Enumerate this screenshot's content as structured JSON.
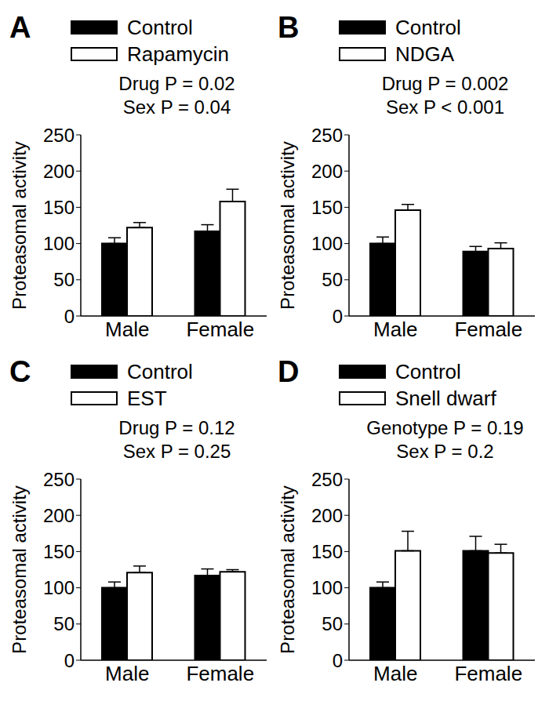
{
  "chart_data": [
    {
      "type": "bar",
      "panel_label": "A",
      "annotations": [
        "Drug P = 0.02",
        "Sex P = 0.04"
      ],
      "y_label": "Proteasomal activity",
      "categories": [
        "Male",
        "Female"
      ],
      "series": [
        {
          "name": "Control",
          "color": "#000000",
          "values": [
            100,
            117
          ],
          "errors": [
            8,
            9
          ]
        },
        {
          "name": "Rapamycin",
          "color": "#ffffff",
          "values": [
            122,
            158
          ],
          "errors": [
            7,
            17
          ]
        }
      ],
      "ylim": [
        0,
        250
      ],
      "yticks": [
        0,
        50,
        100,
        150,
        200,
        250
      ],
      "legend": "top",
      "grid": false
    },
    {
      "type": "bar",
      "panel_label": "B",
      "annotations": [
        "Drug P = 0.002",
        "Sex P < 0.001"
      ],
      "y_label": "Proteasomal activity",
      "categories": [
        "Male",
        "Female"
      ],
      "series": [
        {
          "name": "Control",
          "color": "#000000",
          "values": [
            100,
            89
          ],
          "errors": [
            9,
            7
          ]
        },
        {
          "name": "NDGA",
          "color": "#ffffff",
          "values": [
            146,
            93
          ],
          "errors": [
            8,
            8
          ]
        }
      ],
      "ylim": [
        0,
        250
      ],
      "yticks": [
        0,
        50,
        100,
        150,
        200,
        250
      ],
      "legend": "top",
      "grid": false
    },
    {
      "type": "bar",
      "panel_label": "C",
      "annotations": [
        "Drug P = 0.12",
        "Sex P = 0.25"
      ],
      "y_label": "Proteasomal activity",
      "categories": [
        "Male",
        "Female"
      ],
      "series": [
        {
          "name": "Control",
          "color": "#000000",
          "values": [
            100,
            117
          ],
          "errors": [
            8,
            9
          ]
        },
        {
          "name": "EST",
          "color": "#ffffff",
          "values": [
            121,
            122
          ],
          "errors": [
            9,
            3
          ]
        }
      ],
      "ylim": [
        0,
        250
      ],
      "yticks": [
        0,
        50,
        100,
        150,
        200,
        250
      ],
      "legend": "top",
      "grid": false
    },
    {
      "type": "bar",
      "panel_label": "D",
      "annotations": [
        "Genotype P = 0.19",
        "Sex P = 0.2"
      ],
      "y_label": "Proteasomal activity",
      "categories": [
        "Male",
        "Female"
      ],
      "series": [
        {
          "name": "Control",
          "color": "#000000",
          "values": [
            100,
            151
          ],
          "errors": [
            8,
            20
          ]
        },
        {
          "name": "Snell dwarf",
          "color": "#ffffff",
          "values": [
            151,
            148
          ],
          "errors": [
            27,
            12
          ]
        }
      ],
      "ylim": [
        0,
        250
      ],
      "yticks": [
        0,
        50,
        100,
        150,
        200,
        250
      ],
      "legend": "top",
      "grid": false
    }
  ]
}
